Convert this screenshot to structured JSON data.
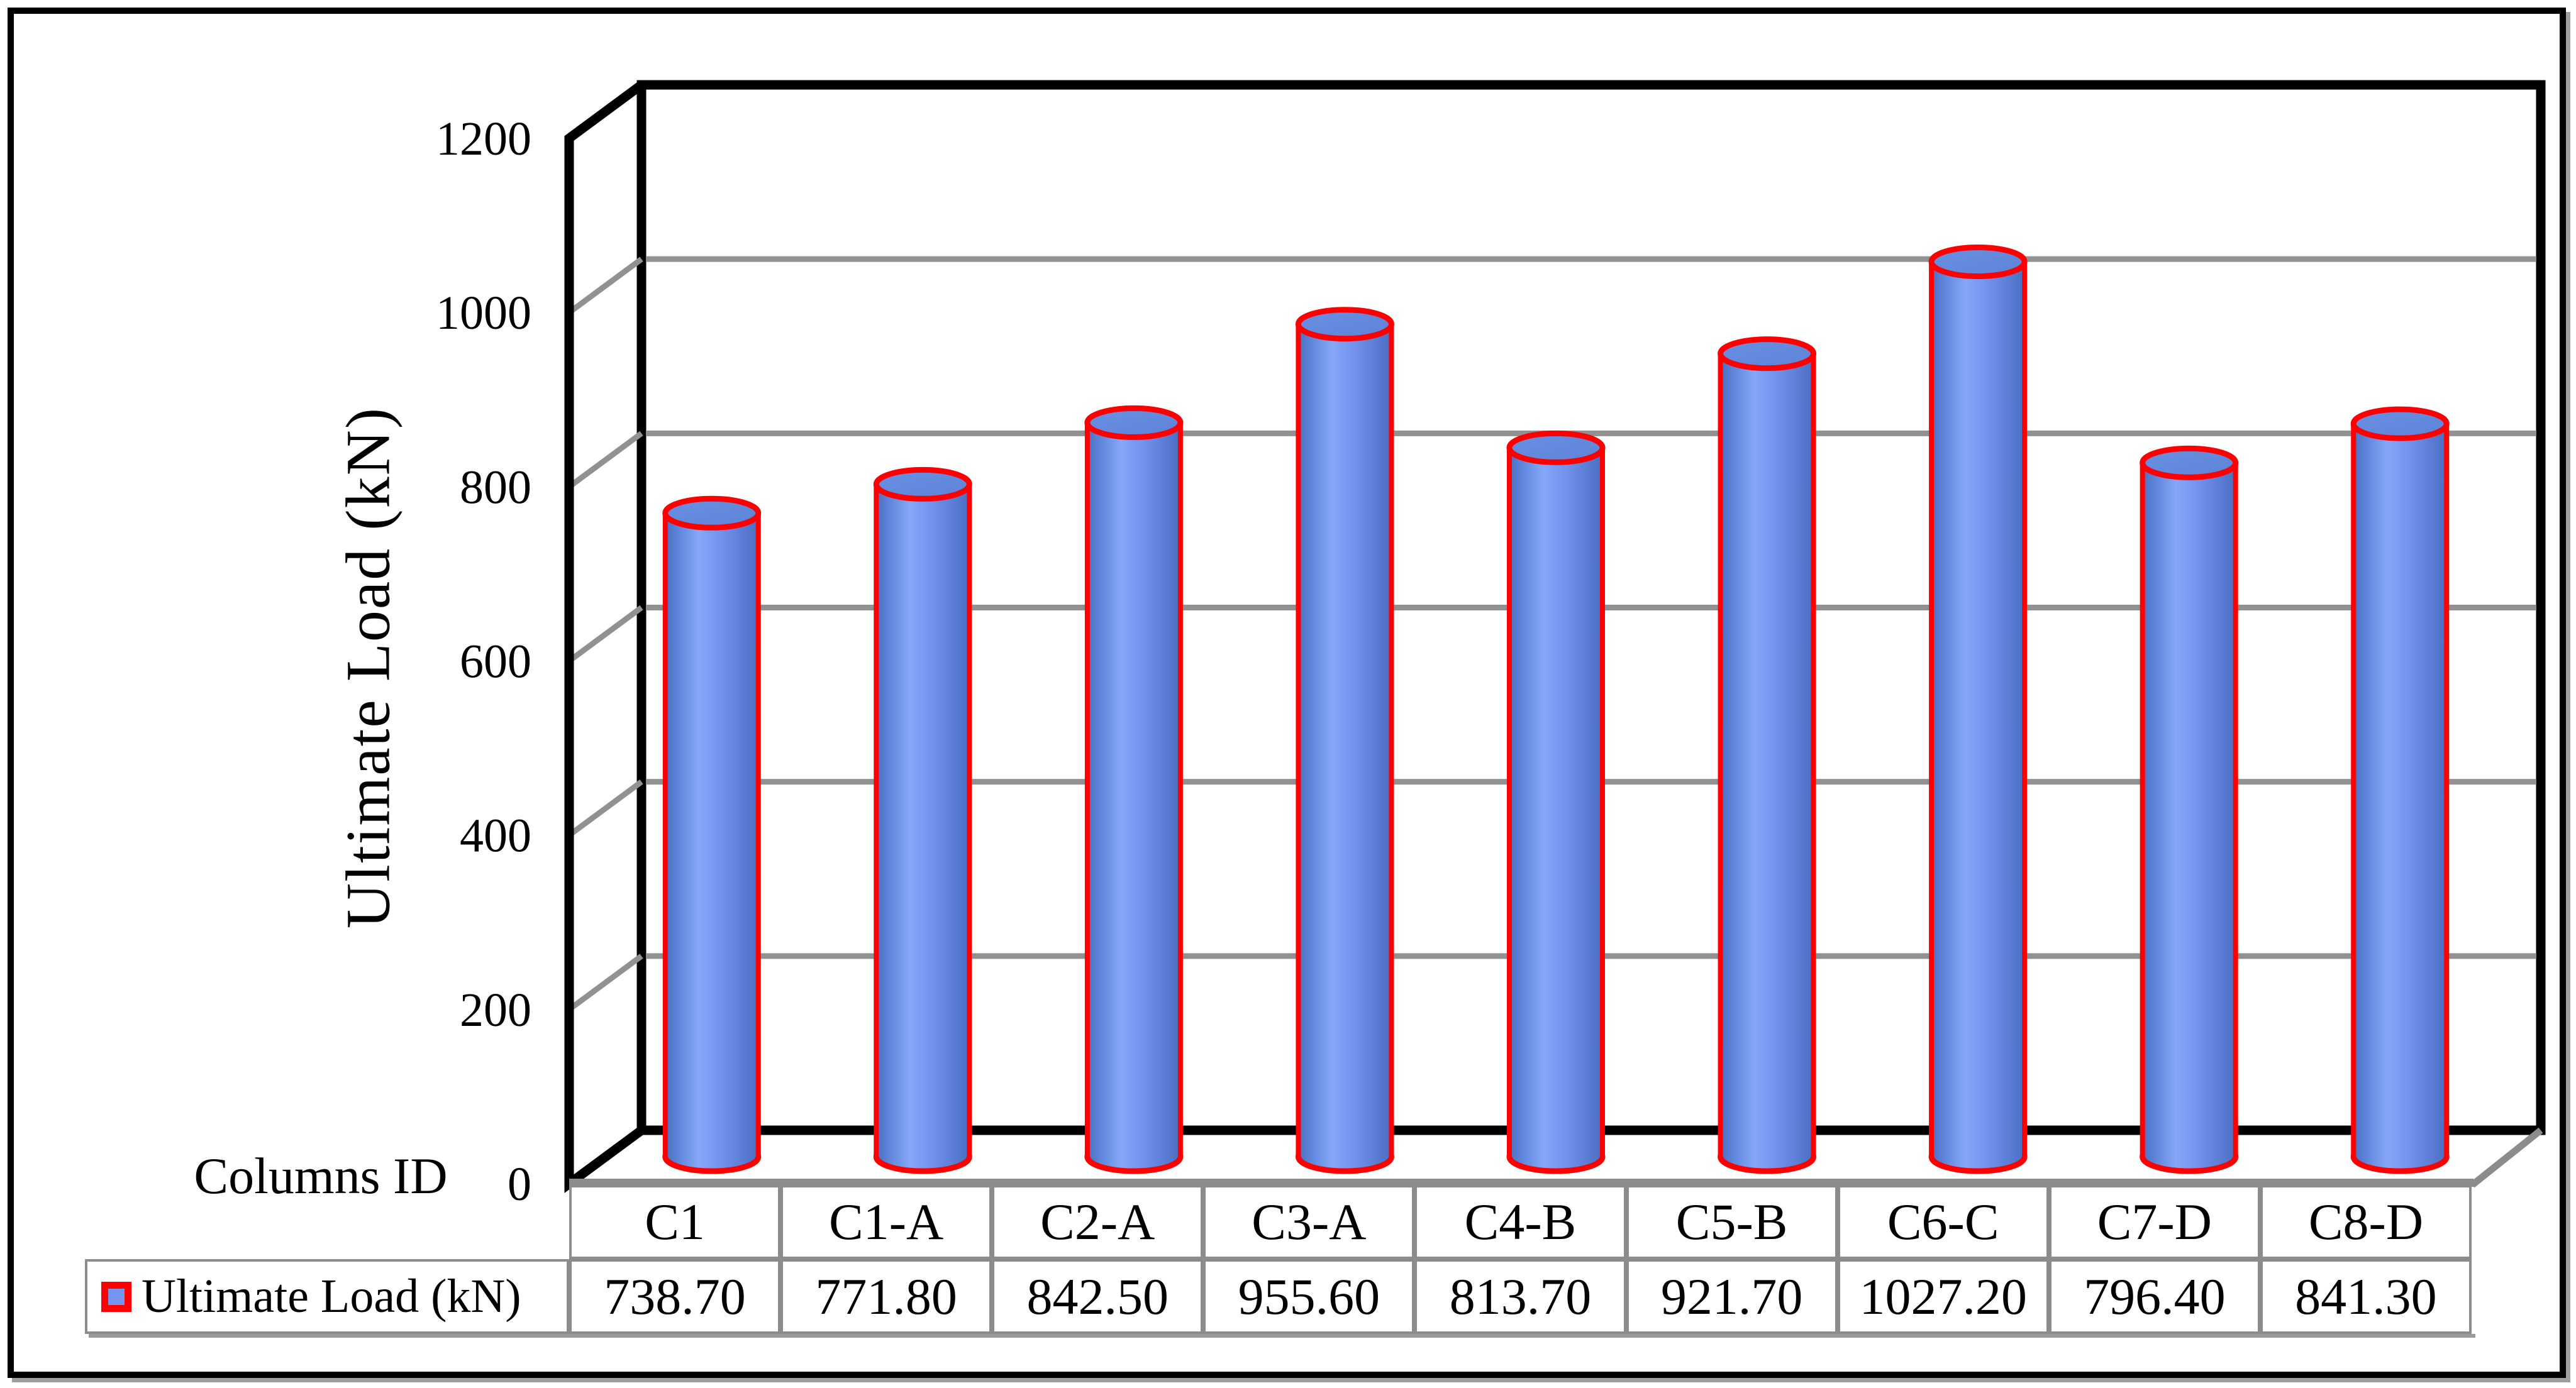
{
  "labels": {
    "y_axis_title": "Ultimate Load (kN)",
    "x_axis_title": "Columns ID",
    "legend_label": "Ultimate Load (kN)"
  },
  "chart_data": {
    "type": "bar",
    "subtype": "3d-cylinder",
    "title": "",
    "xlabel": "Columns ID",
    "ylabel": "Ultimate Load (kN)",
    "categories": [
      "C1",
      "C1-A",
      "C2-A",
      "C3-A",
      "C4-B",
      "C5-B",
      "C6-C",
      "C7-D",
      "C8-D"
    ],
    "series": [
      {
        "name": "Ultimate Load (kN)",
        "values": [
          738.7,
          771.8,
          842.5,
          955.6,
          813.7,
          921.7,
          1027.2,
          796.4,
          841.3
        ]
      }
    ],
    "ylim": [
      0,
      1200
    ],
    "yticks": [
      0,
      200,
      400,
      600,
      800,
      1000,
      1200
    ],
    "ytick_interval": 200,
    "grid": true,
    "legend_position": "table-row-header",
    "colors": {
      "bar_fill": "#7494EE",
      "bar_fill_light": "#85A8F6",
      "bar_fill_dark": "#4A6EC2",
      "bar_top_fill": "#5E83D8",
      "bar_outline": "#FF0000",
      "gridline": "#919191",
      "wall_edge": "#000000",
      "table_border": "#8C8C8C"
    }
  },
  "table": {
    "row_header": "Ultimate Load (kN)",
    "columns": [
      "C1",
      "C1-A",
      "C2-A",
      "C3-A",
      "C4-B",
      "C5-B",
      "C6-C",
      "C7-D",
      "C8-D"
    ],
    "values": [
      "738.70",
      "771.80",
      "842.50",
      "955.60",
      "813.70",
      "921.70",
      "1027.20",
      "796.40",
      "841.30"
    ]
  }
}
